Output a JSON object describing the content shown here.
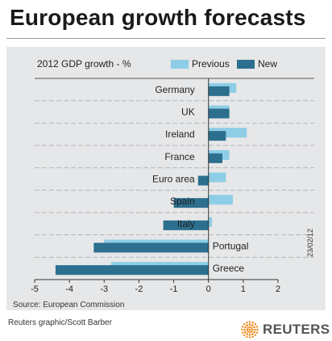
{
  "header": {
    "title": "European growth forecasts"
  },
  "footer": {
    "source": "Source: European Commission",
    "credit": "Reuters graphic/Scott Barber",
    "date": "23/02/12",
    "brand": "REUTERS"
  },
  "colors": {
    "previous": "#8ecde6",
    "new": "#2c6f8e",
    "panel": "#e6e7e8"
  },
  "chart_data": {
    "type": "bar",
    "orientation": "horizontal",
    "title": "2012 GDP growth - %",
    "categories": [
      "Germany",
      "UK",
      "Ireland",
      "France",
      "Euro area",
      "Spain",
      "Italy",
      "Portugal",
      "Greece"
    ],
    "series": [
      {
        "name": "Previous",
        "values": [
          0.8,
          0.6,
          1.1,
          0.6,
          0.5,
          0.7,
          0.1,
          -3.0,
          -2.8
        ]
      },
      {
        "name": "New",
        "values": [
          0.6,
          0.6,
          0.5,
          0.4,
          -0.3,
          -1.0,
          -1.3,
          -3.3,
          -4.4
        ]
      }
    ],
    "xlim": [
      -5,
      2
    ],
    "xticks": [
      "-5",
      "-4",
      "-3",
      "-2",
      "-1",
      "0",
      "1",
      "2"
    ],
    "grid": false,
    "legend": "top-right"
  }
}
